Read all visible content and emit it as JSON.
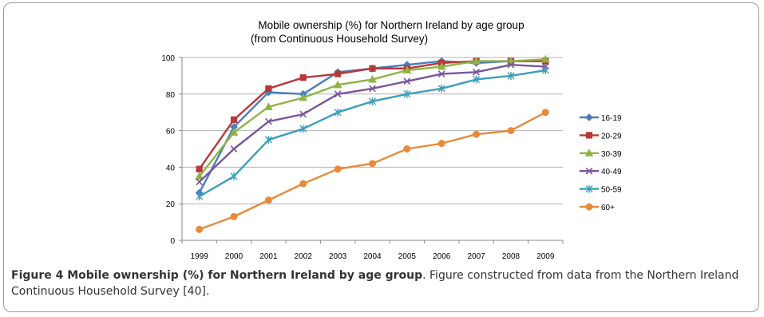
{
  "chart_data": {
    "type": "line",
    "title": "Mobile ownership (%) for Northern Ireland by age group",
    "subtitle": "(from Continuous Household Survey)",
    "x": [
      "1999",
      "2000",
      "2001",
      "2002",
      "2003",
      "2004",
      "2005",
      "2006",
      "2007",
      "2008",
      "2009"
    ],
    "ylim": [
      0,
      100
    ],
    "yticks": [
      0,
      20,
      40,
      60,
      80,
      100
    ],
    "grid": true,
    "legend_position": "right",
    "series": [
      {
        "name": "16-19",
        "color": "#4a7ebb",
        "marker": "diamond",
        "values": [
          26,
          62,
          81,
          80,
          92,
          94,
          96,
          98,
          97,
          98,
          98
        ]
      },
      {
        "name": "20-29",
        "color": "#b7383a",
        "marker": "square",
        "values": [
          39,
          66,
          83,
          89,
          91,
          94,
          94,
          97,
          98,
          98,
          98
        ]
      },
      {
        "name": "30-39",
        "color": "#8fb443",
        "marker": "triangle",
        "values": [
          35,
          59,
          73,
          78,
          85,
          88,
          93,
          95,
          98,
          98,
          99
        ]
      },
      {
        "name": "40-49",
        "color": "#7a559b",
        "marker": "x",
        "values": [
          32,
          50,
          65,
          69,
          80,
          83,
          87,
          91,
          92,
          96,
          95
        ]
      },
      {
        "name": "50-59",
        "color": "#3a9fba",
        "marker": "asterisk",
        "values": [
          24,
          35,
          55,
          61,
          70,
          76,
          80,
          83,
          88,
          90,
          93
        ]
      },
      {
        "name": "60+",
        "color": "#e68b3b",
        "marker": "circle",
        "values": [
          6,
          13,
          22,
          31,
          39,
          42,
          50,
          53,
          58,
          60,
          70
        ]
      }
    ]
  },
  "caption": {
    "title": "Figure 4 Mobile ownership (%) for Northern Ireland by age group",
    "text": ". Figure constructed from data from the Northern Ireland Continuous Household Survey [40]."
  }
}
